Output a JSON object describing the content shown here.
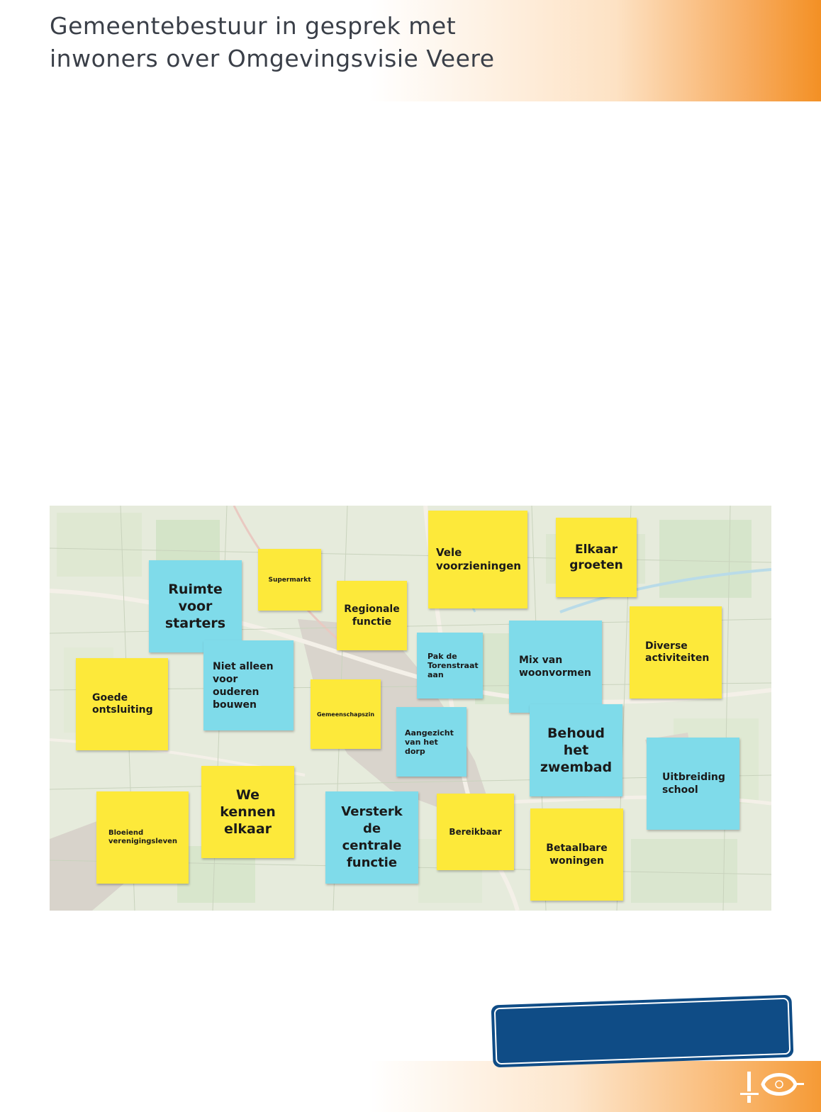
{
  "header": {
    "title_line1": "Gemeentebestuur in gesprek met",
    "title_line2": "inwoners over Omgevingsvisie Veere"
  },
  "map_image": {
    "notes": [
      {
        "id": "ruimte-voor-starters",
        "color": "blue",
        "lines": [
          "Ruimte",
          "voor",
          "starters"
        ]
      },
      {
        "id": "supermarkt",
        "color": "yellow",
        "lines": [
          "Supermarkt"
        ]
      },
      {
        "id": "regionale-functie",
        "color": "yellow",
        "lines": [
          "Regionale",
          "functie"
        ]
      },
      {
        "id": "vele-voorzieningen",
        "color": "yellow",
        "lines": [
          "Vele",
          "voorzieningen"
        ]
      },
      {
        "id": "elkaar-groeten",
        "color": "yellow",
        "lines": [
          "Elkaar",
          "groeten"
        ]
      },
      {
        "id": "diverse-activiteiten",
        "color": "yellow",
        "lines": [
          "Diverse",
          "activiteiten"
        ]
      },
      {
        "id": "goede-ontsluiting",
        "color": "yellow",
        "lines": [
          "Goede",
          "ontsluiting"
        ]
      },
      {
        "id": "niet-alleen-voor-ouderen-bouwen",
        "color": "blue",
        "lines": [
          "Niet alleen",
          "voor ouderen",
          "bouwen"
        ]
      },
      {
        "id": "gemeenschapszin",
        "color": "yellow",
        "lines": [
          "Gemeenschapszin"
        ]
      },
      {
        "id": "pak-de-torenstraat-aan",
        "color": "blue",
        "lines": [
          "Pak de",
          "Torenstraat",
          "aan"
        ]
      },
      {
        "id": "mix-van-woonvormen",
        "color": "blue",
        "lines": [
          "Mix van",
          "woonvormen"
        ]
      },
      {
        "id": "aangezicht-van-het-dorp",
        "color": "blue",
        "lines": [
          "Aangezicht",
          "van het dorp"
        ]
      },
      {
        "id": "behoud-het-zwembad",
        "color": "blue",
        "lines": [
          "Behoud",
          "het",
          "zwembad"
        ]
      },
      {
        "id": "uitbreiding-school",
        "color": "blue",
        "lines": [
          "Uitbreiding",
          "school"
        ]
      },
      {
        "id": "we-kennen-elkaar",
        "color": "yellow",
        "lines": [
          "We",
          "kennen",
          "elkaar"
        ]
      },
      {
        "id": "bloeiend-verenigingsleven",
        "color": "yellow",
        "lines": [
          "Bloeiend",
          "verenigingsleven"
        ]
      },
      {
        "id": "versterk-de-centrale-functie",
        "color": "blue",
        "lines": [
          "Versterk",
          "de",
          "centrale",
          "functie"
        ]
      },
      {
        "id": "bereikbaar",
        "color": "yellow",
        "lines": [
          "Bereikbaar"
        ]
      },
      {
        "id": "betaalbare-woningen",
        "color": "yellow",
        "lines": [
          "Betaalbare",
          "woningen"
        ]
      }
    ]
  },
  "colors": {
    "accent_orange": "#f39024",
    "note_yellow": "#fde93a",
    "note_blue": "#7fdbea",
    "box_blue": "#0f4c86"
  },
  "logo": {
    "icon": "municipality-logo-icon"
  }
}
